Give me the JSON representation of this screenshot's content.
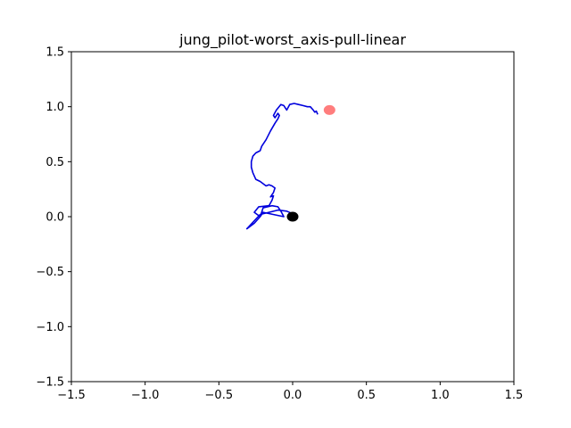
{
  "chart_data": {
    "type": "line",
    "title": "jung_pilot-worst_axis-pull-linear",
    "xlabel": "",
    "ylabel": "",
    "xlim": [
      -1.5,
      1.5
    ],
    "ylim": [
      -1.5,
      1.5
    ],
    "grid": false,
    "x_ticks": [
      -1.5,
      -1.0,
      -0.5,
      0.0,
      0.5,
      1.0,
      1.5
    ],
    "y_ticks": [
      -1.5,
      -1.0,
      -0.5,
      0.0,
      0.5,
      1.0,
      1.5
    ],
    "x_tick_labels": [
      "−1.5",
      "−1.0",
      "−0.5",
      "0.0",
      "0.5",
      "1.0",
      "1.5"
    ],
    "y_tick_labels": [
      "−1.5",
      "−1.0",
      "−0.5",
      "0.0",
      "0.5",
      "1.0",
      "1.5"
    ],
    "series": [
      {
        "color": "#0000dd",
        "x": [
          0.0,
          0.02,
          0.03,
          0.01,
          -0.04,
          -0.1,
          -0.16,
          -0.22,
          -0.31,
          -0.26,
          -0.22,
          -0.2,
          -0.06,
          -0.08,
          -0.1,
          -0.14,
          -0.2,
          -0.22,
          -0.26,
          -0.23,
          -0.16,
          -0.14,
          -0.13,
          -0.15,
          -0.13,
          -0.12,
          -0.14,
          -0.16,
          -0.18,
          -0.2,
          -0.22,
          -0.25,
          -0.27,
          -0.28,
          -0.28,
          -0.27,
          -0.25,
          -0.22,
          -0.21,
          -0.18,
          -0.15,
          -0.12,
          -0.1,
          -0.09,
          -0.1,
          -0.12,
          -0.13,
          -0.11,
          -0.08,
          -0.06,
          -0.04,
          -0.02,
          0.01,
          0.04,
          0.07,
          0.1,
          0.12,
          0.14,
          0.15,
          0.16,
          0.17
        ],
        "y": [
          0.0,
          -0.02,
          0.0,
          0.02,
          0.05,
          0.06,
          0.04,
          0.02,
          -0.11,
          -0.06,
          0.0,
          0.04,
          0.0,
          0.05,
          0.09,
          0.1,
          0.08,
          0.0,
          0.04,
          0.09,
          0.1,
          0.15,
          0.19,
          0.18,
          0.22,
          0.26,
          0.28,
          0.29,
          0.28,
          0.3,
          0.32,
          0.34,
          0.4,
          0.45,
          0.5,
          0.55,
          0.58,
          0.6,
          0.64,
          0.7,
          0.78,
          0.85,
          0.89,
          0.92,
          0.94,
          0.9,
          0.92,
          0.97,
          1.02,
          1.01,
          0.97,
          1.02,
          1.03,
          1.02,
          1.01,
          1.0,
          1.0,
          0.97,
          0.95,
          0.96,
          0.93
        ]
      }
    ],
    "markers": [
      {
        "name": "start",
        "x": 0.0,
        "y": 0.0,
        "color": "#000000"
      },
      {
        "name": "target",
        "x": 0.25,
        "y": 0.97,
        "color": "#ff6666"
      }
    ]
  }
}
